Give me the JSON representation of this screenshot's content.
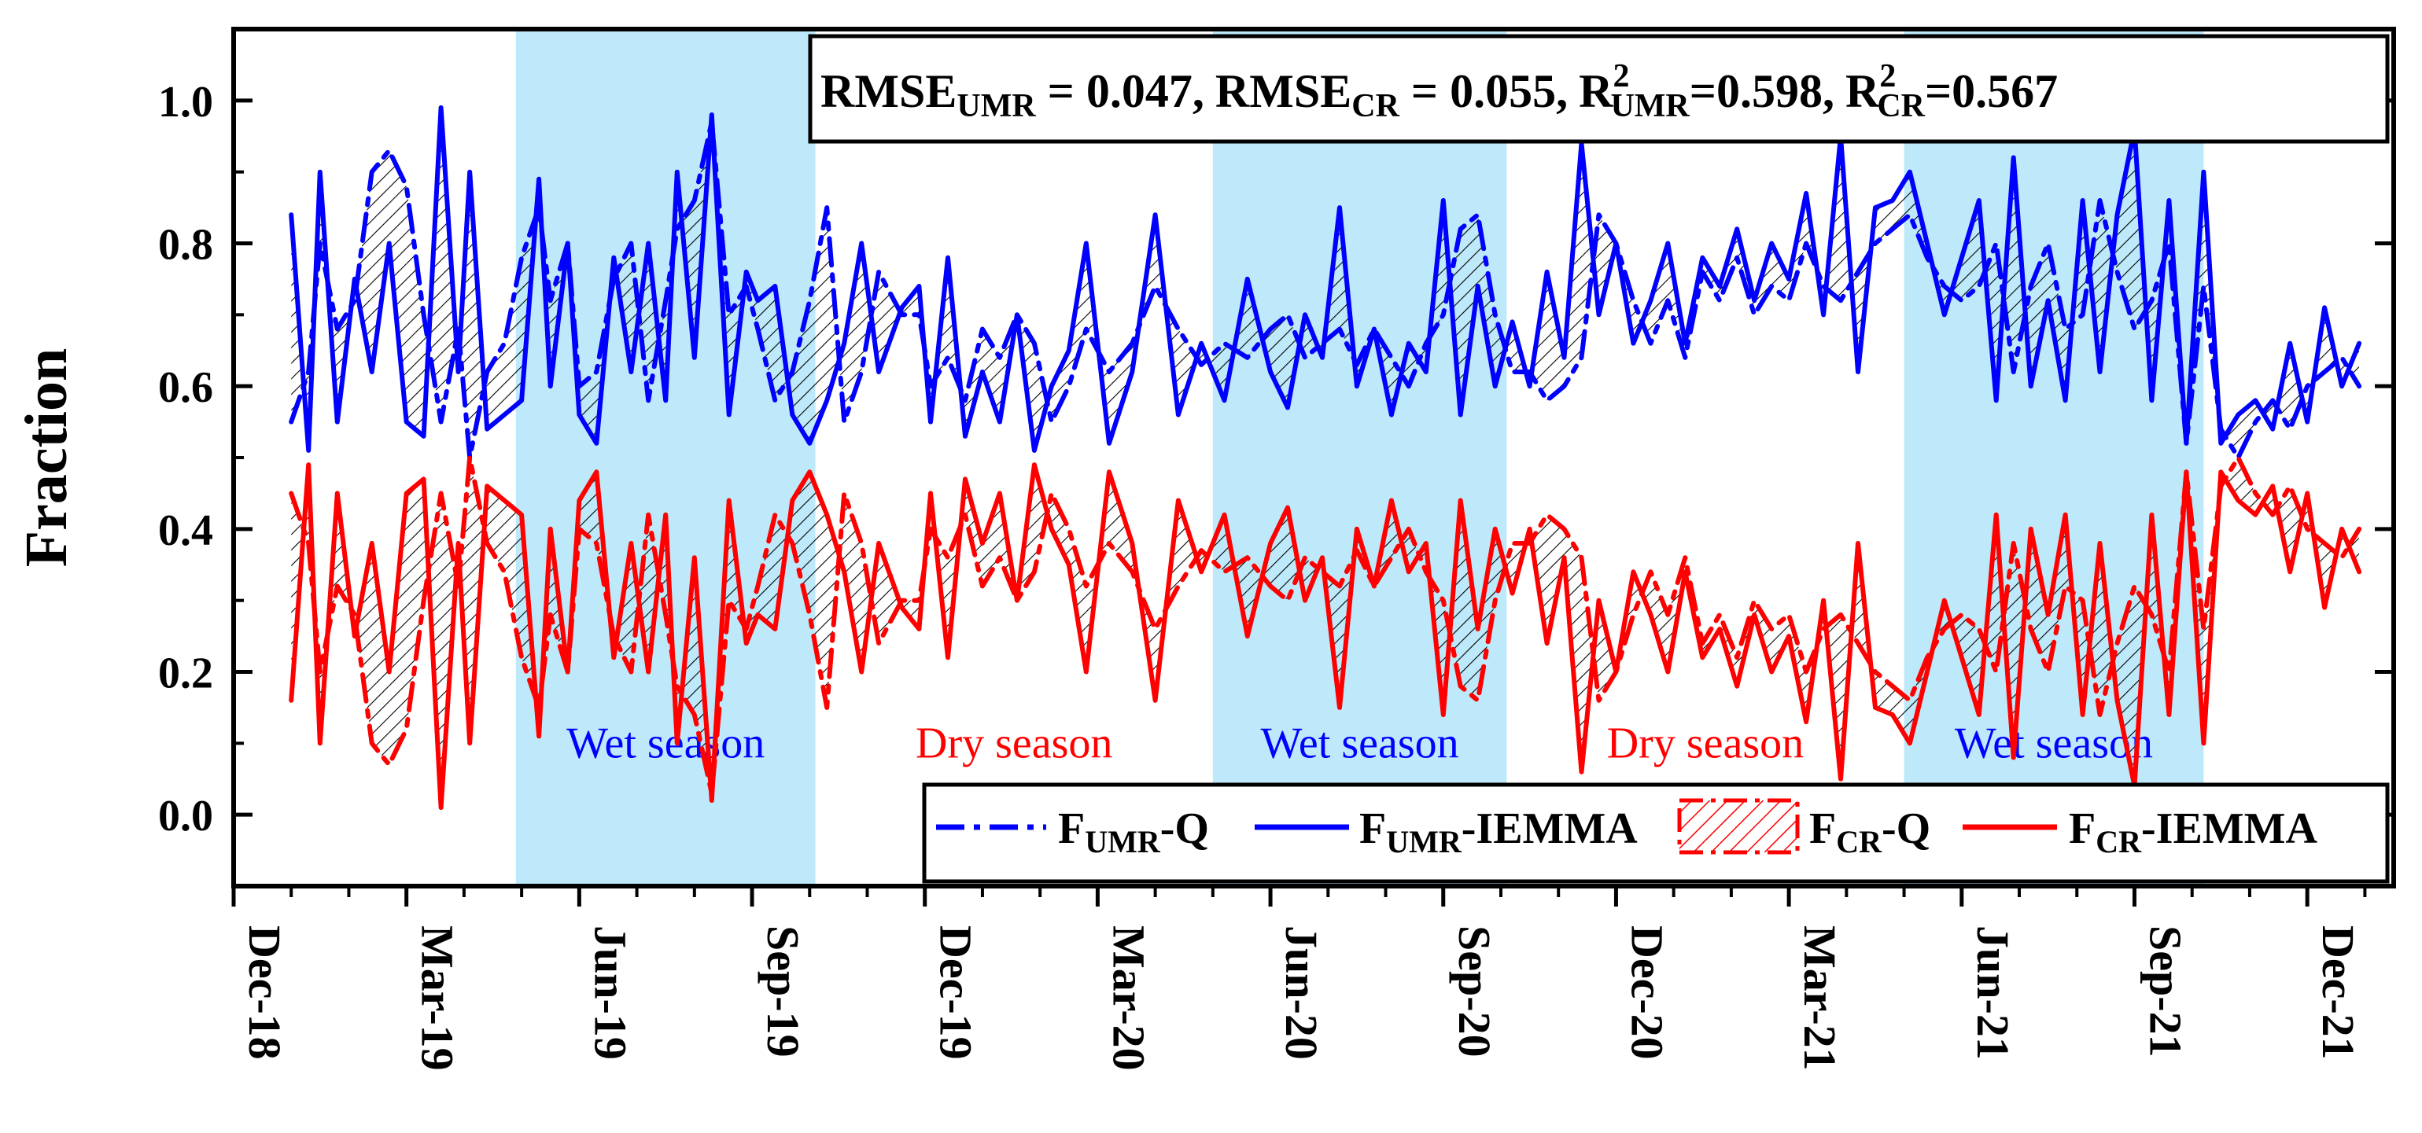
{
  "chart_data": {
    "type": "line",
    "ylabel": "Fraction",
    "xlabel": "",
    "ylim": [
      -0.1,
      1.1
    ],
    "yticks": [
      "0.0",
      "0.2",
      "0.4",
      "0.6",
      "0.8",
      "1.0"
    ],
    "xlim": [
      0,
      37.5
    ],
    "xticks": [
      {
        "label": "Dec-18",
        "pos": 0
      },
      {
        "label": "Mar-19",
        "pos": 3
      },
      {
        "label": "Jun-19",
        "pos": 6
      },
      {
        "label": "Sep-19",
        "pos": 9
      },
      {
        "label": "Dec-19",
        "pos": 12
      },
      {
        "label": "Mar-20",
        "pos": 15
      },
      {
        "label": "Jun-20",
        "pos": 18
      },
      {
        "label": "Sep-20",
        "pos": 21
      },
      {
        "label": "Dec-20",
        "pos": 24
      },
      {
        "label": "Mar-21",
        "pos": 27
      },
      {
        "label": "Jun-21",
        "pos": 30
      },
      {
        "label": "Sep-21",
        "pos": 33
      },
      {
        "label": "Dec-21",
        "pos": 36
      }
    ],
    "seasons": [
      {
        "label": "Wet season",
        "kind": "wet",
        "start": 4.9,
        "end": 10.1,
        "shaded": true,
        "color": "#0000ff"
      },
      {
        "label": "Dry season",
        "kind": "dry",
        "start": 10.1,
        "end": 17.0,
        "shaded": false,
        "color": "#ff0000"
      },
      {
        "label": "Wet season",
        "kind": "wet",
        "start": 17.0,
        "end": 22.1,
        "shaded": true,
        "color": "#0000ff"
      },
      {
        "label": "Dry season",
        "kind": "dry",
        "start": 22.1,
        "end": 29.0,
        "shaded": false,
        "color": "#ff0000"
      },
      {
        "label": "Wet season",
        "kind": "wet",
        "start": 29.0,
        "end": 34.2,
        "shaded": true,
        "color": "#0000ff"
      }
    ],
    "stats": {
      "rmse_umr": {
        "main": "RMSE",
        "sub": "UMR",
        "value": " = 0.047,"
      },
      "rmse_cr": {
        "main": "RMSE",
        "sub": "CR",
        "value": " = 0.055,"
      },
      "r2_umr": {
        "main": "R",
        "sup": "2",
        "sub": "UMR",
        "value": "=0.598,"
      },
      "r2_cr": {
        "main": "R",
        "sup": "2",
        "sub": "CR",
        "value": "=0.567"
      }
    },
    "legend": {
      "placement": "bottom-right",
      "entries": [
        {
          "main": "F",
          "sub": "UMR",
          "suffix": "-Q",
          "style": "dashdot",
          "color": "#0000ff"
        },
        {
          "main": "F",
          "sub": "UMR",
          "suffix": "-IEMMA",
          "style": "solid",
          "color": "#0000ff"
        },
        {
          "main": "F",
          "sub": "CR",
          "suffix": "-Q",
          "style": "hatch",
          "color": "#ff0000"
        },
        {
          "main": "F",
          "sub": "CR",
          "suffix": "-IEMMA",
          "style": "solid",
          "color": "#ff0000"
        }
      ]
    },
    "colors": {
      "umr": "#0000ff",
      "cr": "#ff0000",
      "wet_band": "#bde9fa",
      "hatch": "#000000"
    },
    "x": [
      1.0,
      1.3,
      1.5,
      1.8,
      2.1,
      2.4,
      2.7,
      3.0,
      3.3,
      3.6,
      3.9,
      4.1,
      4.4,
      4.7,
      5.0,
      5.3,
      5.5,
      5.8,
      6.0,
      6.3,
      6.6,
      6.9,
      7.2,
      7.5,
      7.7,
      8.0,
      8.3,
      8.6,
      8.9,
      9.1,
      9.4,
      9.7,
      10.0,
      10.3,
      10.6,
      10.9,
      11.2,
      11.6,
      11.9,
      12.1,
      12.4,
      12.7,
      13.0,
      13.3,
      13.6,
      13.9,
      14.2,
      14.5,
      14.8,
      15.2,
      15.6,
      16.0,
      16.4,
      16.8,
      17.2,
      17.6,
      18.0,
      18.3,
      18.6,
      18.9,
      19.2,
      19.5,
      19.8,
      20.1,
      20.4,
      20.7,
      21.0,
      21.3,
      21.6,
      21.9,
      22.2,
      22.5,
      22.8,
      23.1,
      23.4,
      23.7,
      24.0,
      24.3,
      24.6,
      24.9,
      25.2,
      25.5,
      25.8,
      26.1,
      26.4,
      26.7,
      27.0,
      27.3,
      27.6,
      27.9,
      28.2,
      28.5,
      28.8,
      29.1,
      29.4,
      29.7,
      30.0,
      30.3,
      30.6,
      30.9,
      31.2,
      31.5,
      31.8,
      32.1,
      32.4,
      32.7,
      33.0,
      33.3,
      33.6,
      33.9,
      34.2,
      34.5,
      34.8,
      35.1,
      35.4,
      35.7,
      36.0,
      36.3,
      36.6,
      36.9
    ],
    "series": [
      {
        "name": "FUMR-Q",
        "style": "dashdot",
        "color": "#0000ff",
        "values": [
          0.55,
          0.62,
          0.8,
          0.68,
          0.72,
          0.9,
          0.93,
          0.88,
          0.7,
          0.55,
          0.68,
          0.5,
          0.62,
          0.66,
          0.78,
          0.85,
          0.72,
          0.8,
          0.6,
          0.62,
          0.75,
          0.8,
          0.58,
          0.72,
          0.82,
          0.86,
          0.97,
          0.7,
          0.74,
          0.68,
          0.58,
          0.62,
          0.72,
          0.85,
          0.55,
          0.62,
          0.76,
          0.7,
          0.7,
          0.6,
          0.64,
          0.58,
          0.68,
          0.64,
          0.7,
          0.66,
          0.55,
          0.6,
          0.68,
          0.62,
          0.66,
          0.74,
          0.68,
          0.63,
          0.66,
          0.64,
          0.68,
          0.7,
          0.64,
          0.66,
          0.68,
          0.63,
          0.68,
          0.64,
          0.6,
          0.66,
          0.7,
          0.82,
          0.84,
          0.7,
          0.62,
          0.62,
          0.58,
          0.6,
          0.64,
          0.84,
          0.8,
          0.72,
          0.66,
          0.72,
          0.64,
          0.76,
          0.72,
          0.78,
          0.7,
          0.74,
          0.72,
          0.8,
          0.74,
          0.72,
          0.76,
          0.8,
          0.82,
          0.84,
          0.78,
          0.74,
          0.72,
          0.74,
          0.8,
          0.62,
          0.74,
          0.8,
          0.68,
          0.7,
          0.86,
          0.76,
          0.68,
          0.72,
          0.8,
          0.52,
          0.74,
          0.54,
          0.5,
          0.55,
          0.58,
          0.54,
          0.6,
          0.62,
          0.64,
          0.6
        ]
      },
      {
        "name": "FUMR-IEMMA",
        "style": "solid",
        "color": "#0000ff",
        "values": [
          0.84,
          0.51,
          0.9,
          0.55,
          0.75,
          0.62,
          0.8,
          0.55,
          0.53,
          0.99,
          0.62,
          0.9,
          0.54,
          0.56,
          0.58,
          0.89,
          0.6,
          0.8,
          0.56,
          0.52,
          0.78,
          0.62,
          0.8,
          0.58,
          0.9,
          0.64,
          0.98,
          0.56,
          0.76,
          0.72,
          0.74,
          0.56,
          0.52,
          0.58,
          0.66,
          0.8,
          0.62,
          0.71,
          0.74,
          0.55,
          0.78,
          0.53,
          0.62,
          0.55,
          0.7,
          0.51,
          0.6,
          0.65,
          0.8,
          0.52,
          0.62,
          0.84,
          0.56,
          0.66,
          0.58,
          0.75,
          0.62,
          0.57,
          0.7,
          0.64,
          0.85,
          0.6,
          0.68,
          0.56,
          0.66,
          0.62,
          0.86,
          0.56,
          0.74,
          0.6,
          0.69,
          0.6,
          0.76,
          0.64,
          0.94,
          0.7,
          0.8,
          0.66,
          0.72,
          0.8,
          0.66,
          0.78,
          0.74,
          0.82,
          0.72,
          0.8,
          0.75,
          0.87,
          0.7,
          0.95,
          0.62,
          0.85,
          0.86,
          0.9,
          0.8,
          0.7,
          0.78,
          0.86,
          0.58,
          0.92,
          0.6,
          0.72,
          0.58,
          0.86,
          0.62,
          0.84,
          0.96,
          0.58,
          0.86,
          0.52,
          0.9,
          0.52,
          0.56,
          0.58,
          0.54,
          0.66,
          0.55,
          0.71,
          0.6,
          0.66
        ]
      },
      {
        "name": "FCR-Q",
        "style": "hatch",
        "color": "#ff0000",
        "values": [
          0.45,
          0.38,
          0.2,
          0.32,
          0.28,
          0.1,
          0.07,
          0.12,
          0.3,
          0.45,
          0.32,
          0.5,
          0.38,
          0.34,
          0.22,
          0.15,
          0.28,
          0.2,
          0.4,
          0.38,
          0.25,
          0.2,
          0.42,
          0.28,
          0.18,
          0.14,
          0.03,
          0.3,
          0.26,
          0.32,
          0.42,
          0.38,
          0.28,
          0.15,
          0.45,
          0.38,
          0.24,
          0.3,
          0.3,
          0.4,
          0.36,
          0.42,
          0.32,
          0.36,
          0.3,
          0.34,
          0.45,
          0.4,
          0.32,
          0.38,
          0.34,
          0.26,
          0.32,
          0.37,
          0.34,
          0.36,
          0.32,
          0.3,
          0.36,
          0.34,
          0.32,
          0.37,
          0.32,
          0.36,
          0.4,
          0.34,
          0.3,
          0.18,
          0.16,
          0.3,
          0.38,
          0.38,
          0.42,
          0.4,
          0.36,
          0.16,
          0.2,
          0.28,
          0.34,
          0.28,
          0.36,
          0.24,
          0.28,
          0.22,
          0.3,
          0.26,
          0.28,
          0.2,
          0.26,
          0.28,
          0.24,
          0.2,
          0.18,
          0.16,
          0.22,
          0.26,
          0.28,
          0.26,
          0.2,
          0.38,
          0.26,
          0.2,
          0.32,
          0.3,
          0.14,
          0.24,
          0.32,
          0.28,
          0.2,
          0.48,
          0.26,
          0.46,
          0.5,
          0.45,
          0.42,
          0.46,
          0.4,
          0.38,
          0.36,
          0.4
        ]
      },
      {
        "name": "FCR-IEMMA",
        "style": "solid",
        "color": "#ff0000",
        "values": [
          0.16,
          0.49,
          0.1,
          0.45,
          0.25,
          0.38,
          0.2,
          0.45,
          0.47,
          0.01,
          0.38,
          0.1,
          0.46,
          0.44,
          0.42,
          0.11,
          0.4,
          0.2,
          0.44,
          0.48,
          0.22,
          0.38,
          0.2,
          0.42,
          0.1,
          0.36,
          0.02,
          0.44,
          0.24,
          0.28,
          0.26,
          0.44,
          0.48,
          0.42,
          0.34,
          0.2,
          0.38,
          0.29,
          0.26,
          0.45,
          0.22,
          0.47,
          0.38,
          0.45,
          0.3,
          0.49,
          0.4,
          0.35,
          0.2,
          0.48,
          0.38,
          0.16,
          0.44,
          0.34,
          0.42,
          0.25,
          0.38,
          0.43,
          0.3,
          0.36,
          0.15,
          0.4,
          0.32,
          0.44,
          0.34,
          0.38,
          0.14,
          0.44,
          0.26,
          0.4,
          0.31,
          0.4,
          0.24,
          0.36,
          0.06,
          0.3,
          0.2,
          0.34,
          0.28,
          0.2,
          0.34,
          0.22,
          0.26,
          0.18,
          0.28,
          0.2,
          0.25,
          0.13,
          0.3,
          0.05,
          0.38,
          0.15,
          0.14,
          0.1,
          0.2,
          0.3,
          0.22,
          0.14,
          0.42,
          0.08,
          0.4,
          0.28,
          0.42,
          0.14,
          0.38,
          0.16,
          0.04,
          0.42,
          0.14,
          0.48,
          0.1,
          0.48,
          0.44,
          0.42,
          0.46,
          0.34,
          0.45,
          0.29,
          0.4,
          0.34
        ]
      }
    ]
  }
}
